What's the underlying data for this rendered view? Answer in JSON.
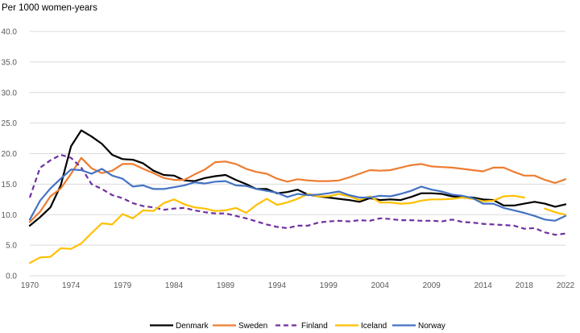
{
  "chart_data": {
    "type": "line",
    "title": "",
    "ylabel": "Per 1000 women-years",
    "xlabel": "",
    "ylim": [
      0,
      40
    ],
    "yticks": [
      "0.0",
      "5.0",
      "10.0",
      "15.0",
      "20.0",
      "25.0",
      "30.0",
      "35.0",
      "40.0"
    ],
    "ytick_values": [
      0,
      5,
      10,
      15,
      20,
      25,
      30,
      35,
      40
    ],
    "xlim": [
      1970,
      2022
    ],
    "xticks": [
      "1970",
      "1974",
      "1979",
      "1984",
      "1989",
      "1994",
      "1999",
      "2004",
      "2009",
      "2014",
      "2018",
      "2022"
    ],
    "xtick_values": [
      1970,
      1974,
      1979,
      1984,
      1989,
      1994,
      1999,
      2004,
      2009,
      2014,
      2018,
      2022
    ],
    "grid": true,
    "legend_position": "bottom",
    "series": [
      {
        "name": "Denmark",
        "color": "#000000",
        "dash": "solid",
        "x": [
          1970,
          1971,
          1972,
          1973,
          1974,
          1975,
          1976,
          1977,
          1978,
          1979,
          1980,
          1981,
          1982,
          1983,
          1984,
          1985,
          1986,
          1987,
          1988,
          1989,
          1990,
          1991,
          1992,
          1993,
          1994,
          1995,
          1996,
          1997,
          1998,
          1999,
          2000,
          2001,
          2002,
          2003,
          2004,
          2005,
          2006,
          2007,
          2008,
          2009,
          2010,
          2011,
          2012,
          2013,
          2014,
          2015,
          2016,
          2017,
          2018,
          2019,
          2020,
          2021,
          2022
        ],
        "values": [
          8.2,
          9.6,
          11.2,
          14.8,
          21.2,
          23.8,
          22.8,
          21.6,
          19.8,
          19.1,
          19.0,
          18.4,
          17.2,
          16.5,
          16.4,
          15.6,
          15.5,
          16.0,
          16.3,
          16.5,
          15.7,
          15.0,
          14.2,
          14.2,
          13.5,
          13.7,
          14.1,
          13.3,
          13.0,
          12.8,
          12.6,
          12.4,
          12.1,
          12.7,
          12.4,
          12.5,
          12.4,
          12.9,
          13.5,
          13.5,
          13.4,
          13.0,
          12.9,
          12.8,
          12.5,
          12.4,
          11.5,
          11.5,
          11.8,
          12.1,
          11.8,
          11.3,
          11.7
        ]
      },
      {
        "name": "Sweden",
        "color": "#ED7D31",
        "dash": "solid",
        "x": [
          1970,
          1971,
          1972,
          1973,
          1974,
          1975,
          1976,
          1977,
          1978,
          1979,
          1980,
          1981,
          1982,
          1983,
          1984,
          1985,
          1986,
          1987,
          1988,
          1989,
          1990,
          1991,
          1992,
          1993,
          1994,
          1995,
          1996,
          1997,
          1998,
          1999,
          2000,
          2001,
          2002,
          2003,
          2004,
          2005,
          2006,
          2007,
          2008,
          2009,
          2010,
          2011,
          2012,
          2013,
          2014,
          2015,
          2016,
          2017,
          2018,
          2019,
          2020,
          2021,
          2022
        ],
        "values": [
          8.8,
          10.5,
          13.0,
          14.3,
          16.7,
          19.3,
          17.6,
          16.8,
          17.2,
          18.3,
          18.3,
          17.5,
          16.8,
          16.0,
          15.7,
          15.7,
          16.6,
          17.4,
          18.6,
          18.7,
          18.3,
          17.5,
          17.0,
          16.7,
          15.9,
          15.4,
          15.8,
          15.6,
          15.5,
          15.5,
          15.6,
          16.1,
          16.7,
          17.3,
          17.2,
          17.3,
          17.7,
          18.1,
          18.3,
          17.9,
          17.8,
          17.7,
          17.5,
          17.3,
          17.1,
          17.7,
          17.7,
          17.0,
          16.4,
          16.4,
          15.7,
          15.2,
          15.8
        ]
      },
      {
        "name": "Finland",
        "color": "#7030A0",
        "dash": "dashed",
        "x": [
          1970,
          1971,
          1972,
          1973,
          1974,
          1975,
          1976,
          1977,
          1978,
          1979,
          1980,
          1981,
          1982,
          1983,
          1984,
          1985,
          1986,
          1987,
          1988,
          1989,
          1990,
          1991,
          1992,
          1993,
          1994,
          1995,
          1996,
          1997,
          1998,
          1999,
          2000,
          2001,
          2002,
          2003,
          2004,
          2005,
          2006,
          2007,
          2008,
          2009,
          2010,
          2011,
          2012,
          2013,
          2014,
          2015,
          2016,
          2017,
          2018,
          2019,
          2020,
          2021,
          2022
        ],
        "values": [
          12.8,
          17.7,
          18.9,
          19.8,
          19.3,
          17.7,
          15.0,
          14.2,
          13.2,
          12.7,
          11.9,
          11.4,
          11.2,
          10.8,
          11.0,
          11.1,
          10.7,
          10.4,
          10.2,
          10.2,
          9.8,
          9.4,
          8.9,
          8.4,
          8.0,
          7.8,
          8.2,
          8.2,
          8.7,
          8.9,
          9.0,
          8.9,
          9.1,
          9.0,
          9.4,
          9.3,
          9.1,
          9.1,
          9.0,
          9.0,
          8.9,
          9.2,
          8.8,
          8.7,
          8.5,
          8.4,
          8.3,
          8.2,
          7.7,
          7.8,
          7.1,
          6.7,
          6.9
        ]
      },
      {
        "name": "Iceland",
        "color": "#FFC000",
        "dash": "solid",
        "x": [
          1970,
          1971,
          1972,
          1973,
          1974,
          1975,
          1976,
          1977,
          1978,
          1979,
          1980,
          1981,
          1982,
          1983,
          1984,
          1985,
          1986,
          1987,
          1988,
          1989,
          1990,
          1991,
          1992,
          1993,
          1994,
          1995,
          1996,
          1997,
          1998,
          1999,
          2000,
          2001,
          2002,
          2003,
          2004,
          2005,
          2006,
          2007,
          2008,
          2009,
          2010,
          2011,
          2012,
          2013,
          2014,
          2015,
          2016,
          2017,
          2018,
          null,
          2020,
          2021,
          2022
        ],
        "values": [
          2.1,
          3.0,
          3.1,
          4.5,
          4.4,
          5.3,
          7.0,
          8.6,
          8.4,
          10.1,
          9.4,
          10.7,
          10.6,
          11.9,
          12.5,
          11.7,
          11.2,
          11.0,
          10.6,
          10.7,
          11.1,
          10.3,
          11.6,
          12.6,
          11.6,
          12.0,
          12.6,
          13.4,
          13.0,
          13.0,
          13.4,
          13.0,
          12.4,
          13.0,
          12.0,
          12.0,
          11.8,
          11.9,
          12.3,
          12.5,
          12.5,
          12.6,
          12.8,
          12.6,
          12.2,
          12.3,
          13.0,
          13.1,
          12.8,
          null,
          11.0,
          10.4,
          10.0
        ]
      },
      {
        "name": "Norway",
        "color": "#4472C4",
        "dash": "solid",
        "x": [
          1970,
          1971,
          1972,
          1973,
          1974,
          1975,
          1976,
          1977,
          1978,
          1979,
          1980,
          1981,
          1982,
          1983,
          1984,
          1985,
          1986,
          1987,
          1988,
          1989,
          1990,
          1991,
          1992,
          1993,
          1994,
          1995,
          1996,
          1997,
          1998,
          1999,
          2000,
          2001,
          2002,
          2003,
          2004,
          2005,
          2006,
          2007,
          2008,
          2009,
          2010,
          2011,
          2012,
          2013,
          2014,
          2015,
          2016,
          2017,
          2018,
          2019,
          2020,
          2021,
          2022
        ],
        "values": [
          9.2,
          12.3,
          14.3,
          15.9,
          17.4,
          17.3,
          16.7,
          17.5,
          16.4,
          15.9,
          14.6,
          14.8,
          14.2,
          14.2,
          14.5,
          14.8,
          15.3,
          15.1,
          15.4,
          15.5,
          14.8,
          14.7,
          14.2,
          13.9,
          13.6,
          12.9,
          13.4,
          13.2,
          13.3,
          13.5,
          13.8,
          13.2,
          12.8,
          12.8,
          13.1,
          13.0,
          13.4,
          13.9,
          14.6,
          14.1,
          13.8,
          13.3,
          13.1,
          12.7,
          11.8,
          11.8,
          11.1,
          10.7,
          10.3,
          9.8,
          9.2,
          9.0,
          9.8
        ]
      }
    ]
  }
}
